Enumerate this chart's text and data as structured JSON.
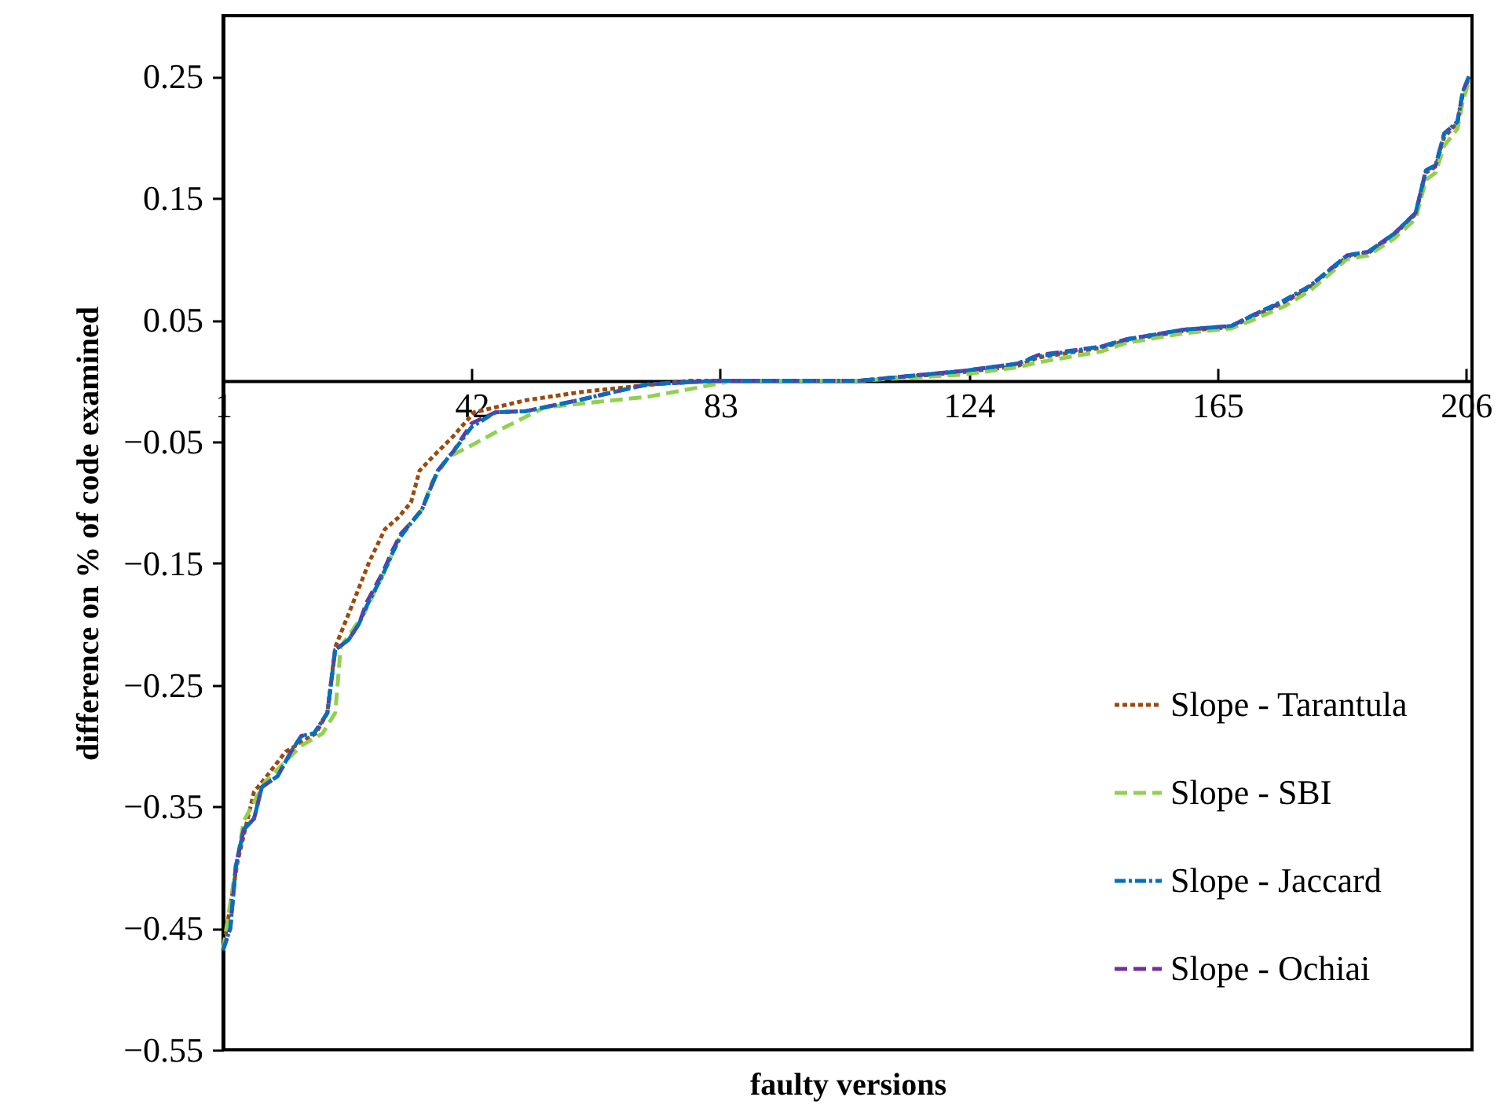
{
  "chart_data": {
    "type": "line",
    "xlabel": "faulty versions",
    "ylabel": "difference on % of code examined",
    "xlim": [
      1,
      207
    ],
    "xticks": [
      1,
      42,
      83,
      124,
      165,
      206
    ],
    "ylim": [
      -0.55,
      0.3
    ],
    "yticks": [
      -0.55,
      -0.45,
      -0.35,
      -0.25,
      -0.15,
      -0.05,
      0.05,
      0.15,
      0.25
    ],
    "grid": false,
    "legend": "bottom right",
    "series": [
      {
        "name": "Slope - Tarantula",
        "color": "#9c4a0c",
        "line_style": "dotted",
        "x": [
          1,
          3.4,
          6.1,
          7.9,
          11.3,
          16.3,
          18.2,
          19.5,
          22,
          25.1,
          27.7,
          29.8,
          32,
          33.4,
          35.5,
          38.9,
          42.4,
          51,
          60.5,
          78,
          106,
          123,
          132,
          135.4,
          145.8,
          150,
          159.5,
          167.3,
          170.9,
          176,
          180.3,
          186.4,
          189.9,
          194.2,
          197.7,
          199.4,
          201,
          202.4,
          204.6,
          205.5,
          206.5
        ],
        "values": [
          -0.468,
          -0.395,
          -0.338,
          -0.327,
          -0.305,
          -0.29,
          -0.273,
          -0.219,
          -0.188,
          -0.149,
          -0.122,
          -0.113,
          -0.1,
          -0.074,
          -0.063,
          -0.046,
          -0.026,
          -0.016,
          -0.009,
          0,
          0,
          0.007,
          0.012,
          0.019,
          0.027,
          0.033,
          0.041,
          0.044,
          0.053,
          0.064,
          0.077,
          0.102,
          0.105,
          0.12,
          0.137,
          0.171,
          0.176,
          0.2,
          0.212,
          0.236,
          0.249
        ]
      },
      {
        "name": "Slope - SBI",
        "color": "#92d050",
        "line_style": "dashed",
        "x": [
          1,
          2.6,
          4.4,
          7.9,
          13.9,
          17.4,
          19.5,
          20.4,
          24.3,
          27.7,
          30.3,
          33.8,
          35.5,
          38.1,
          42.4,
          47.2,
          54,
          71.3,
          80,
          85,
          106,
          123,
          132,
          135.4,
          145.8,
          150,
          159.5,
          167.3,
          170.9,
          176,
          180.3,
          186.4,
          189.9,
          194.2,
          197.7,
          199.4,
          201,
          202.4,
          204.6,
          205.5,
          206.5
        ],
        "values": [
          -0.468,
          -0.416,
          -0.362,
          -0.33,
          -0.3,
          -0.29,
          -0.273,
          -0.219,
          -0.191,
          -0.156,
          -0.126,
          -0.106,
          -0.083,
          -0.063,
          -0.052,
          -0.039,
          -0.022,
          -0.013,
          -0.005,
          0,
          0,
          0.005,
          0.011,
          0.015,
          0.024,
          0.031,
          0.039,
          0.043,
          0.05,
          0.061,
          0.074,
          0.1,
          0.103,
          0.117,
          0.133,
          0.165,
          0.171,
          0.193,
          0.207,
          0.23,
          0.246
        ]
      },
      {
        "name": "Slope - Jaccard",
        "color": "#0070c0",
        "line_style": "dashdot",
        "x": [
          1,
          2.2,
          3.1,
          4.4,
          6.1,
          7.4,
          10,
          12.2,
          13.9,
          16,
          18.2,
          19.5,
          21.7,
          23.4,
          24.7,
          27.3,
          29,
          30.3,
          32,
          33.8,
          35,
          36.4,
          39,
          42,
          45.9,
          51,
          59.6,
          71,
          82.7,
          106,
          123,
          132,
          135.4,
          145.8,
          150,
          159.5,
          167.3,
          170.9,
          176,
          180.3,
          186.4,
          189.9,
          194.2,
          197.7,
          199.4,
          201,
          202.4,
          204.6,
          205.5,
          206.5
        ],
        "values": [
          -0.468,
          -0.45,
          -0.399,
          -0.369,
          -0.36,
          -0.334,
          -0.325,
          -0.305,
          -0.292,
          -0.29,
          -0.273,
          -0.221,
          -0.213,
          -0.2,
          -0.185,
          -0.16,
          -0.141,
          -0.128,
          -0.117,
          -0.106,
          -0.091,
          -0.074,
          -0.058,
          -0.038,
          -0.026,
          -0.025,
          -0.016,
          -0.003,
          0,
          0,
          0.008,
          0.014,
          0.02,
          0.028,
          0.034,
          0.042,
          0.045,
          0.054,
          0.066,
          0.078,
          0.103,
          0.106,
          0.121,
          0.138,
          0.173,
          0.177,
          0.203,
          0.213,
          0.238,
          0.25
        ]
      },
      {
        "name": "Slope - Ochiai",
        "color": "#7030a0",
        "line_style": "dashed",
        "x": [
          1,
          2.2,
          3.1,
          4.4,
          6.1,
          7.4,
          10,
          12.2,
          13.9,
          16,
          18.2,
          19.5,
          21.7,
          23.4,
          24.7,
          27.3,
          29,
          30.3,
          32,
          33.8,
          35,
          36.4,
          39,
          42,
          45.9,
          51,
          59.6,
          71,
          82.7,
          106,
          123,
          132,
          135.4,
          145.8,
          150,
          159.5,
          167.3,
          170.9,
          176,
          180.3,
          186.4,
          189.9,
          194.2,
          197.7,
          199.4,
          201,
          202.4,
          204.6,
          205.5,
          206.5
        ],
        "values": [
          -0.468,
          -0.45,
          -0.399,
          -0.369,
          -0.36,
          -0.334,
          -0.325,
          -0.305,
          -0.292,
          -0.29,
          -0.273,
          -0.221,
          -0.213,
          -0.2,
          -0.182,
          -0.158,
          -0.139,
          -0.126,
          -0.117,
          -0.106,
          -0.091,
          -0.074,
          -0.058,
          -0.035,
          -0.026,
          -0.025,
          -0.016,
          -0.003,
          0,
          0,
          0.008,
          0.014,
          0.021,
          0.028,
          0.034,
          0.042,
          0.045,
          0.054,
          0.065,
          0.078,
          0.103,
          0.106,
          0.121,
          0.138,
          0.173,
          0.177,
          0.203,
          0.213,
          0.238,
          0.25
        ]
      }
    ]
  }
}
